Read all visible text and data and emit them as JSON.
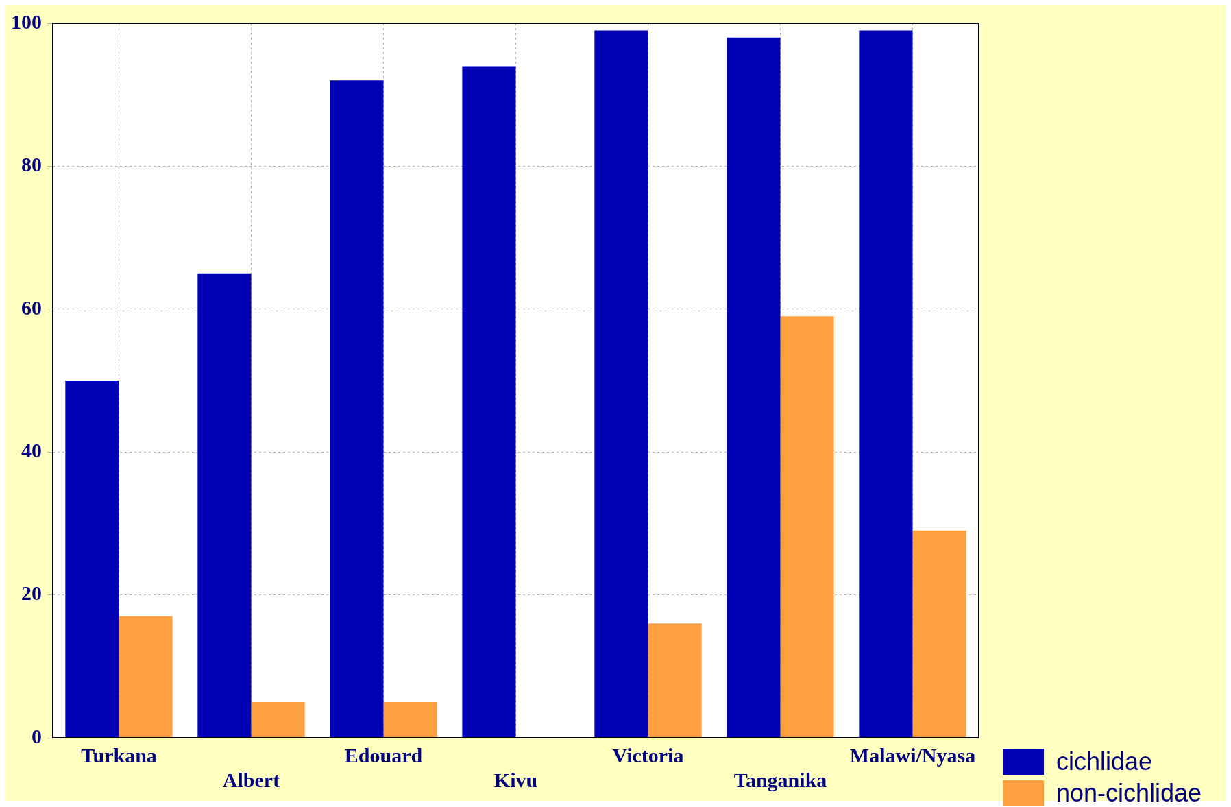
{
  "chart_data": {
    "type": "bar",
    "categories": [
      "Turkana",
      "Albert",
      "Edouard",
      "Kivu",
      "Victoria",
      "Tanganika",
      "Malawi/Nyasa"
    ],
    "series": [
      {
        "name": "cichlidae",
        "color": "#0000b4",
        "values": [
          50,
          65,
          92,
          94,
          99,
          98,
          99
        ]
      },
      {
        "name": "non-cichlidae",
        "color": "#ffa040",
        "values": [
          17,
          5,
          5,
          null,
          16,
          59,
          29
        ]
      }
    ],
    "ylim": [
      0,
      100
    ],
    "yticks": [
      0,
      20,
      40,
      60,
      80,
      100
    ],
    "grid": true,
    "legend": "bottom right"
  }
}
